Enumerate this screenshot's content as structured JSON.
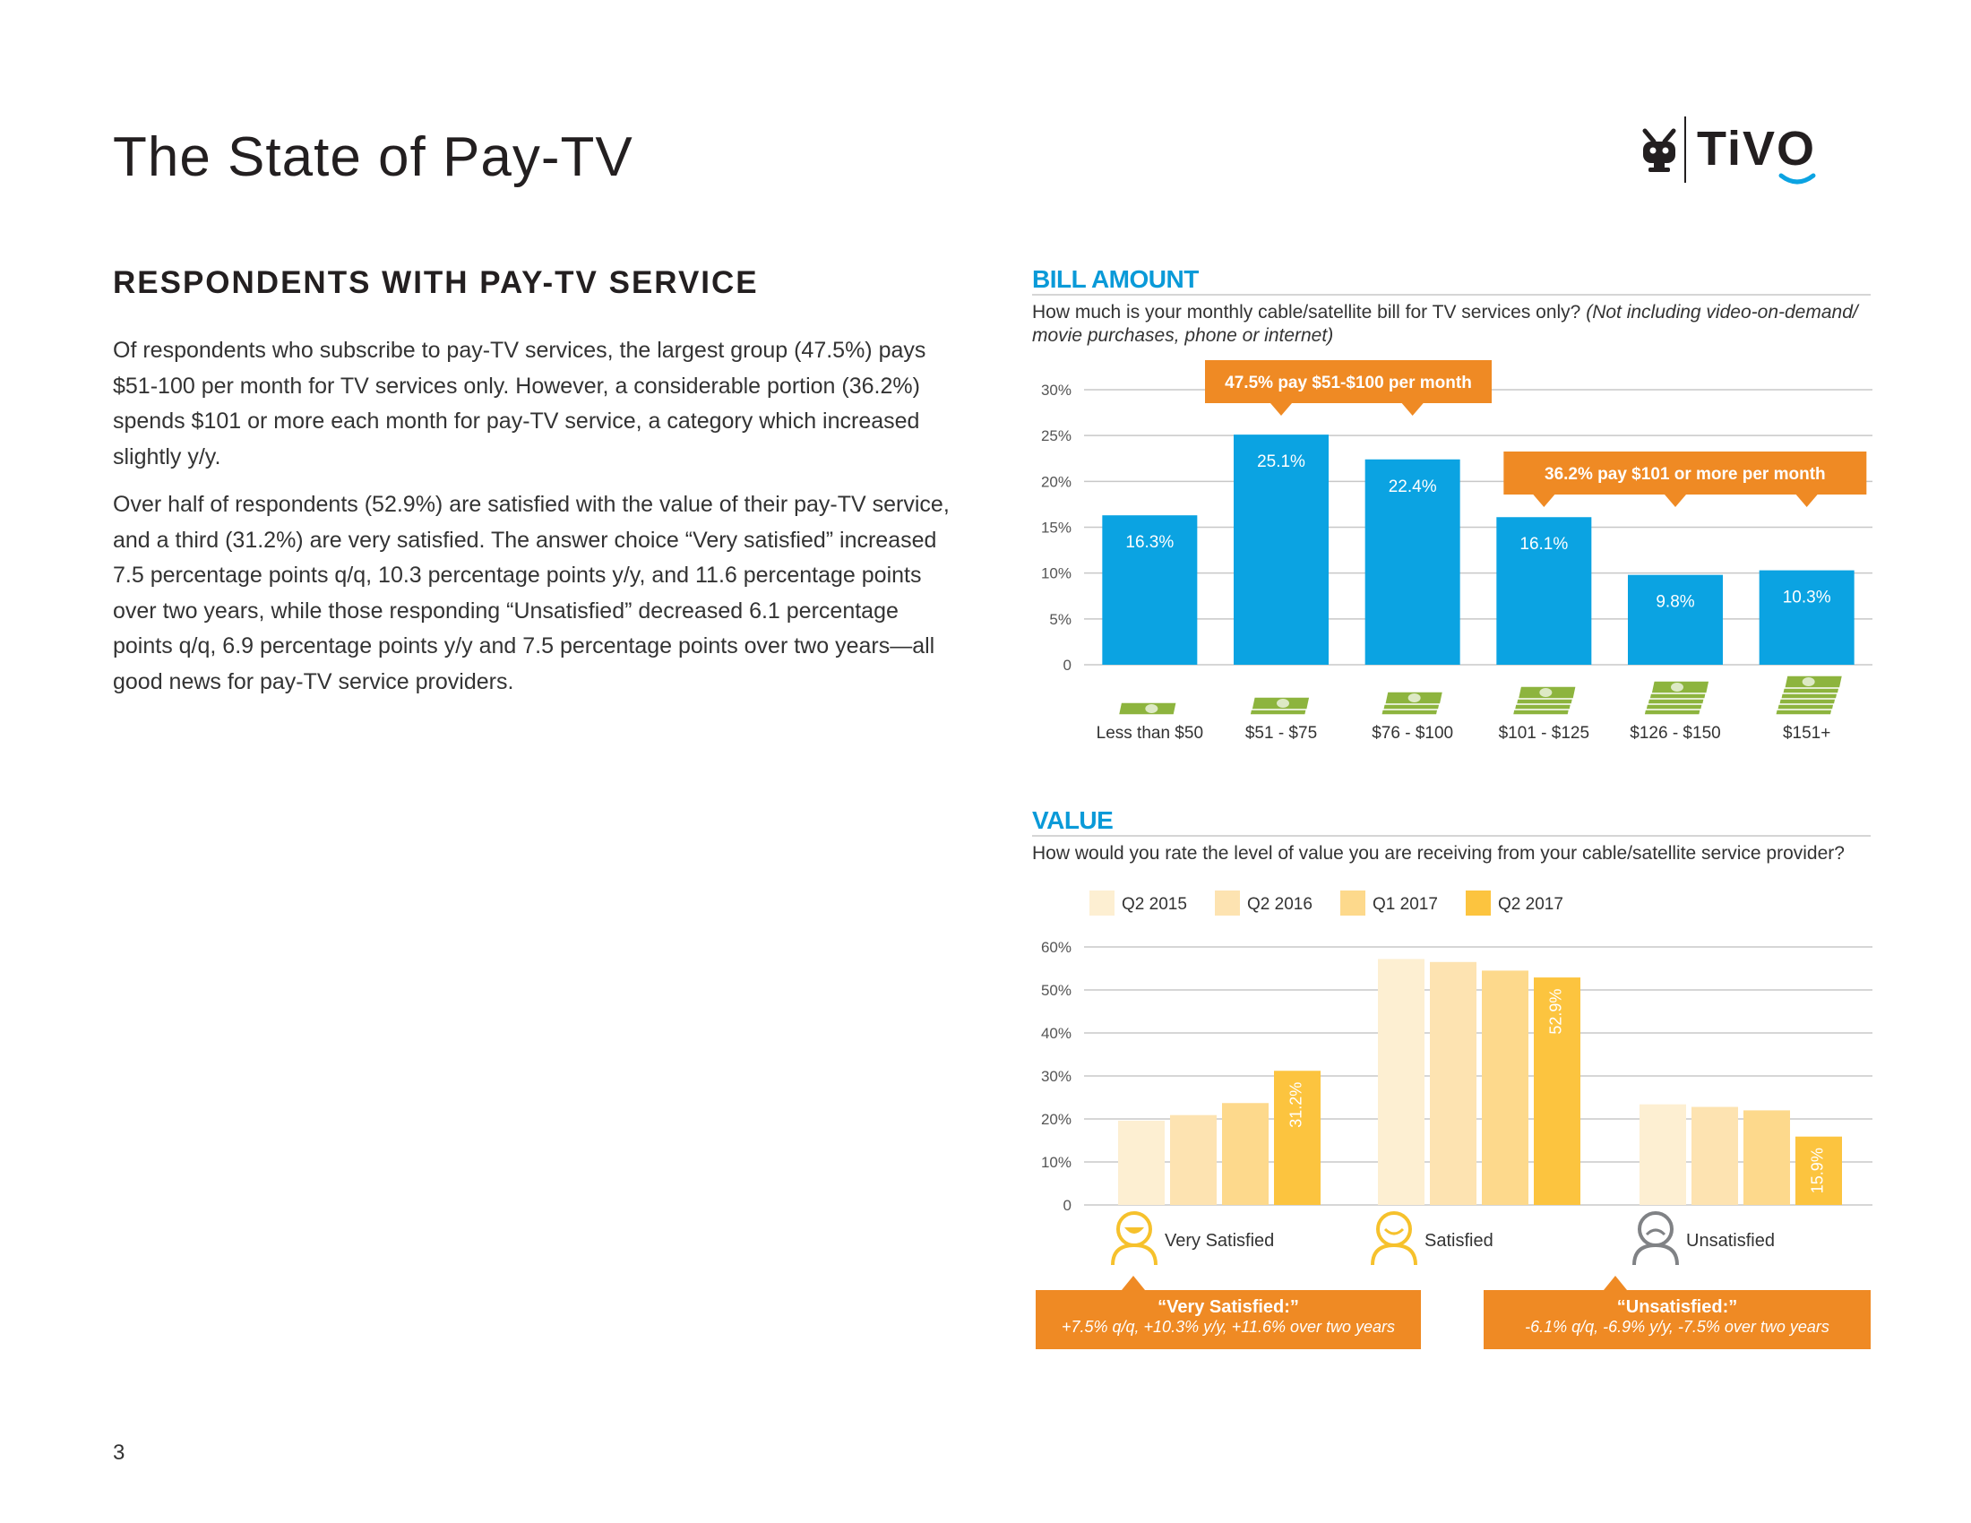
{
  "page": {
    "title": "The State of Pay-TV",
    "page_number": "3",
    "logo_text": "TiVO"
  },
  "section": {
    "heading": "RESPONDENTS WITH PAY-TV SERVICE",
    "paragraphs": [
      "Of respondents who subscribe to pay-TV services, the largest group (47.5%) pays $51-100 per month for TV services only. However, a considerable portion (36.2%) spends $101 or more each month for pay-TV service, a category which increased slightly y/y.",
      "Over half of respondents (52.9%) are satisfied with the value of their pay-TV service, and a third (31.2%) are very satisfied. The answer choice “Very satisfied” increased 7.5 percentage points q/q, 10.3 percentage points y/y, and 11.6 percentage points over two years, while those responding “Unsatisfied” decreased 6.1 percentage points q/q, 6.9 percentage points y/y and 7.5 percentage points over two years—all good news for pay-TV service providers."
    ]
  },
  "bill_panel": {
    "title": "BILL AMOUNT",
    "question": "How much is your monthly cable/satellite bill for TV services only?",
    "question_note": "(Not including video-on-demand/ movie purchases, phone or internet)",
    "callouts": [
      "47.5%  pay $51-$100 per month",
      "36.2%  pay $101 or more per month"
    ]
  },
  "value_panel": {
    "title": "VALUE",
    "question": "How would you rate the level of value you are receiving from your cable/satellite service provider?",
    "callouts": [
      {
        "title": "“Very Satisfied:”",
        "body": "+7.5% q/q, +10.3% y/y,  +11.6% over two years"
      },
      {
        "title": "“Unsatisfied:”",
        "body": "-6.1% q/q, -6.9% y/y,  -7.5% over two years"
      }
    ]
  },
  "colors": {
    "bill_bar": "#0ba3e2",
    "accent_orange": "#ef8a24",
    "money_icon": "#8db43e",
    "series": [
      "#fdefd2",
      "#fde3b1",
      "#fdd98c",
      "#fcc43f"
    ],
    "smiley_happy": "#f6c12c",
    "smiley_sad": "#808285"
  },
  "icons": [
    "money-stack-icon",
    "very-satisfied-face-icon",
    "satisfied-face-icon",
    "unsatisfied-face-icon",
    "tivo-logo-icon"
  ],
  "chart_data": [
    {
      "type": "bar",
      "title": "BILL AMOUNT",
      "categories": [
        "Less than $50",
        "$51 - $75",
        "$76 - $100",
        "$101 - $125",
        "$126 - $150",
        "$151+"
      ],
      "values": [
        16.3,
        25.1,
        22.4,
        16.1,
        9.8,
        10.3
      ],
      "data_labels": [
        "16.3%",
        "25.1%",
        "22.4%",
        "16.1%",
        "9.8%",
        "10.3%"
      ],
      "yticks": [
        "0",
        "5%",
        "10%",
        "15%",
        "20%",
        "25%",
        "30%"
      ],
      "ylim": [
        0,
        30
      ],
      "grid": true
    },
    {
      "type": "bar",
      "title": "VALUE",
      "categories": [
        "Very Satisfied",
        "Satisfied",
        "Unsatisfied"
      ],
      "series": [
        {
          "name": "Q2 2015",
          "values": [
            19.6,
            57.2,
            23.4
          ]
        },
        {
          "name": "Q2 2016",
          "values": [
            20.9,
            56.5,
            22.8
          ]
        },
        {
          "name": "Q1 2017",
          "values": [
            23.7,
            54.5,
            22.0
          ]
        },
        {
          "name": "Q2 2017",
          "values": [
            31.2,
            52.9,
            15.9
          ]
        }
      ],
      "data_labels": [
        "31.2%",
        "52.9%",
        "15.9%"
      ],
      "yticks": [
        "0",
        "10%",
        "20%",
        "30%",
        "40%",
        "50%",
        "60%"
      ],
      "ylim": [
        0,
        60
      ],
      "legend": "top",
      "grid": true
    }
  ]
}
